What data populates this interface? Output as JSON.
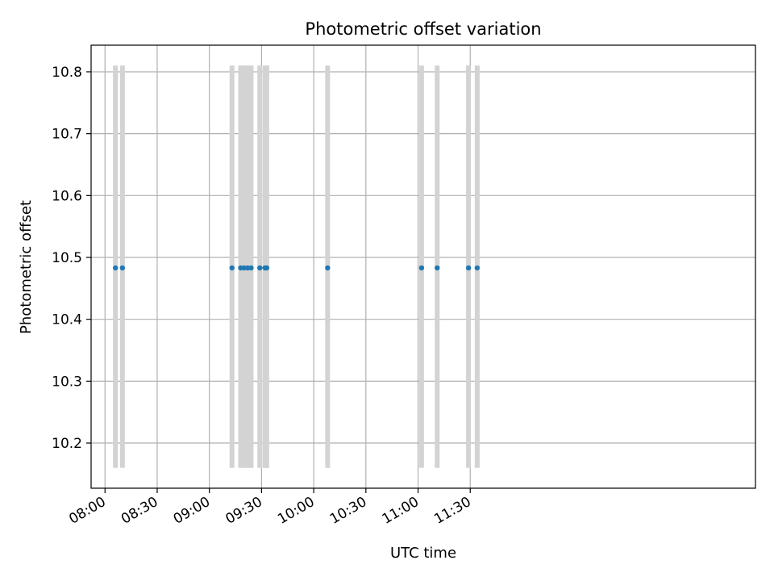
{
  "chart_data": {
    "type": "scatter",
    "title": "Photometric offset variation",
    "xlabel": "UTC time",
    "ylabel": "Photometric offset",
    "x_unit": "minutes since 08:00 UTC",
    "xlim": [
      -8,
      374
    ],
    "ylim": [
      10.127,
      10.843
    ],
    "grid": true,
    "x_ticks": [
      {
        "value": 0,
        "label": "08:00"
      },
      {
        "value": 30,
        "label": "08:30"
      },
      {
        "value": 60,
        "label": "09:00"
      },
      {
        "value": 90,
        "label": "09:30"
      },
      {
        "value": 120,
        "label": "10:00"
      },
      {
        "value": 150,
        "label": "10:30"
      },
      {
        "value": 180,
        "label": "11:00"
      },
      {
        "value": 210,
        "label": "11:30"
      }
    ],
    "y_ticks": [
      {
        "value": 10.2,
        "label": "10.2"
      },
      {
        "value": 10.3,
        "label": "10.3"
      },
      {
        "value": 10.4,
        "label": "10.4"
      },
      {
        "value": 10.5,
        "label": "10.5"
      },
      {
        "value": 10.6,
        "label": "10.6"
      },
      {
        "value": 10.7,
        "label": "10.7"
      },
      {
        "value": 10.8,
        "label": "10.8"
      }
    ],
    "band_range": [
      10.16,
      10.81
    ],
    "bands_x": [
      6,
      10,
      73,
      78,
      80,
      82,
      84,
      89,
      92,
      93,
      128,
      182,
      191,
      209,
      214
    ],
    "series": [
      {
        "name": "offset",
        "color": "#1f77b4",
        "x": [
          6,
          10,
          73,
          78,
          80,
          82,
          84,
          89,
          92,
          93,
          128,
          182,
          191,
          209,
          214
        ],
        "y": [
          10.483,
          10.483,
          10.483,
          10.483,
          10.483,
          10.483,
          10.483,
          10.483,
          10.483,
          10.483,
          10.483,
          10.483,
          10.483,
          10.483,
          10.483
        ]
      }
    ],
    "colors": {
      "band": "#d3d3d3",
      "grid": "#b0b0b0",
      "point": "#1f77b4"
    }
  }
}
